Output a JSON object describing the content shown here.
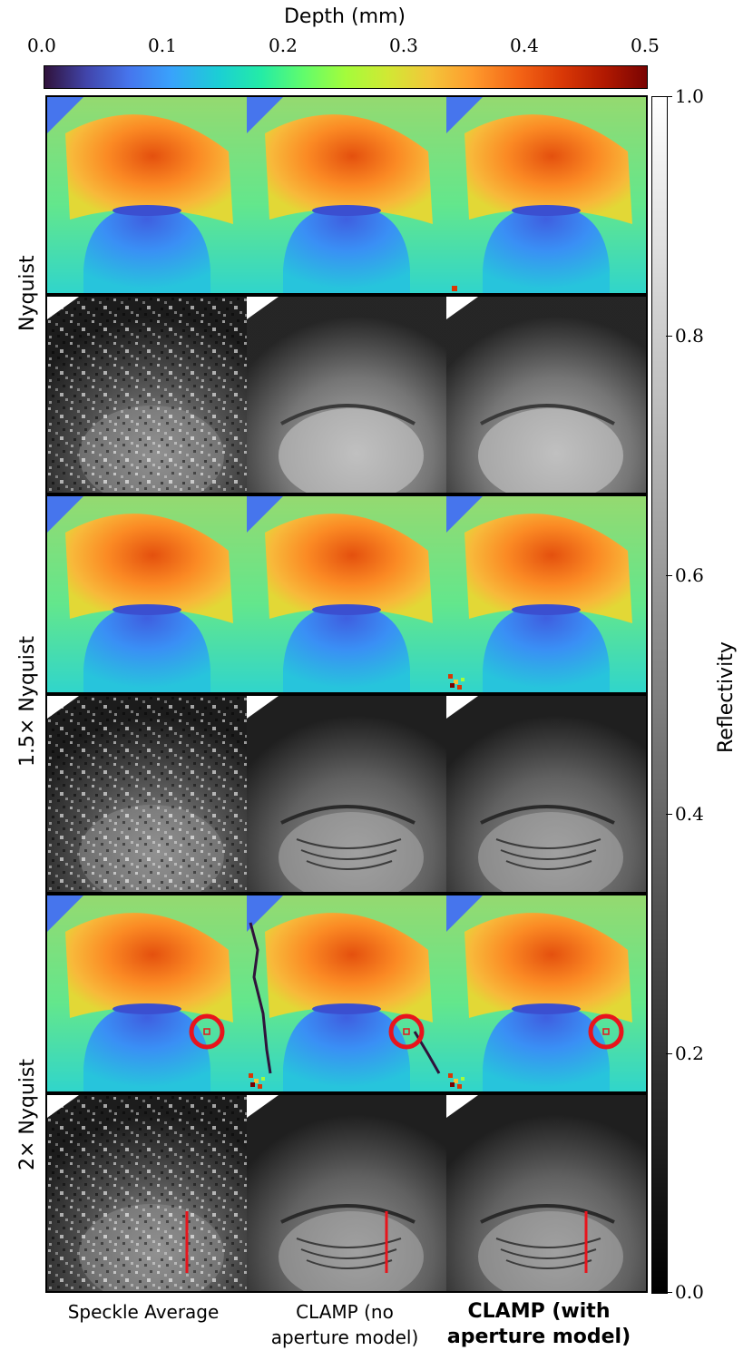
{
  "depth_colorbar": {
    "label": "Depth (mm)",
    "ticks": [
      "0.0",
      "0.1",
      "0.2",
      "0.3",
      "0.4",
      "0.5"
    ],
    "range": [
      0.0,
      0.5
    ],
    "colormap": "turbo",
    "position": "top"
  },
  "reflectivity_colorbar": {
    "label": "Reflectivity",
    "ticks": [
      "0.0",
      "0.2",
      "0.4",
      "0.6",
      "0.8",
      "1.0"
    ],
    "range": [
      0.0,
      1.0
    ],
    "colormap": "gray",
    "position": "right"
  },
  "rows": [
    {
      "label": "Nyquist"
    },
    {
      "label": "1.5× Nyquist"
    },
    {
      "label": "2× Nyquist"
    }
  ],
  "columns": [
    {
      "line1": "Speckle Average",
      "line2": "",
      "bold": false
    },
    {
      "line1": "CLAMP (no",
      "line2": "aperture model)",
      "bold": false
    },
    {
      "line1": "CLAMP (with",
      "line2": "aperture model)",
      "bold": true
    }
  ],
  "annotations": {
    "circle_color": "#e8141c",
    "line_color": "#e8141c"
  }
}
